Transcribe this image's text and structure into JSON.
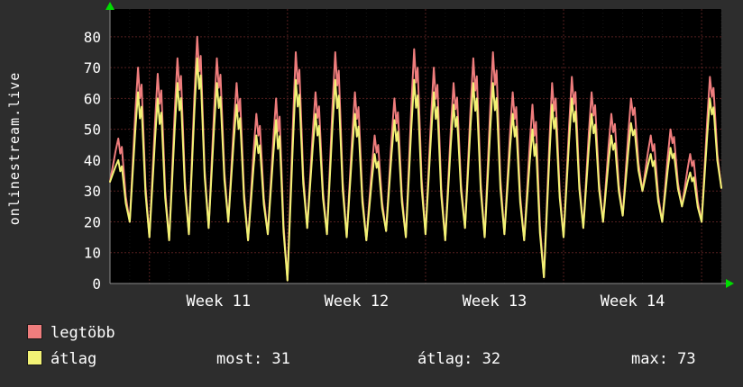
{
  "title_vertical": "onlinestream.live",
  "colors": {
    "background": "#2d2d2d",
    "plot_background": "#000000",
    "axis": "#8a8a8a",
    "arrow_green": "#00dd00",
    "grid_major": "rgba(255,95,95,0.33)",
    "grid_minor": "rgba(200,200,200,0.10)",
    "series_legtobb": "#ef7d7d",
    "series_atlag": "#f2f275",
    "text": "#ffffff"
  },
  "chart_data": {
    "type": "line",
    "title": "",
    "xlabel": "",
    "ylabel": "",
    "ylim": [
      0,
      89
    ],
    "y_ticks": [
      0,
      10,
      20,
      30,
      40,
      50,
      60,
      70,
      80
    ],
    "x_tick_labels": [
      "Week 11",
      "Week 12",
      "Week 13",
      "Week 14"
    ],
    "week_start_days": [
      2,
      9,
      16,
      23,
      30
    ],
    "days_total": 31,
    "grid": true,
    "legend_position": "bottom-left",
    "series": [
      {
        "name": "legtöbb",
        "color": "#ef7d7d",
        "daily_peaks": [
          47,
          70,
          68,
          73,
          80,
          73,
          65,
          55,
          60,
          75,
          62,
          75,
          62,
          48,
          60,
          76,
          70,
          65,
          73,
          75,
          62,
          58,
          65,
          67,
          62,
          55,
          60,
          48,
          50,
          42,
          67
        ]
      },
      {
        "name": "átlag",
        "color": "#f2f275",
        "daily_peaks": [
          40,
          62,
          60,
          65,
          73,
          65,
          58,
          48,
          53,
          66,
          55,
          66,
          55,
          42,
          53,
          66,
          62,
          58,
          65,
          65,
          55,
          50,
          58,
          60,
          55,
          48,
          52,
          42,
          44,
          36,
          60
        ]
      }
    ],
    "daily_troughs": [
      33,
      20,
      15,
      14,
      16,
      18,
      20,
      14,
      16,
      1,
      18,
      16,
      15,
      14,
      17,
      15,
      16,
      14,
      18,
      15,
      16,
      14,
      2,
      15,
      18,
      20,
      22,
      30,
      20,
      25,
      20,
      31
    ]
  },
  "legend": {
    "legtobb_label": "legtöbb",
    "atlag_label": "átlag"
  },
  "stats": {
    "most": "most: 31",
    "atlag": "átlag: 32",
    "max": "max: 73"
  }
}
